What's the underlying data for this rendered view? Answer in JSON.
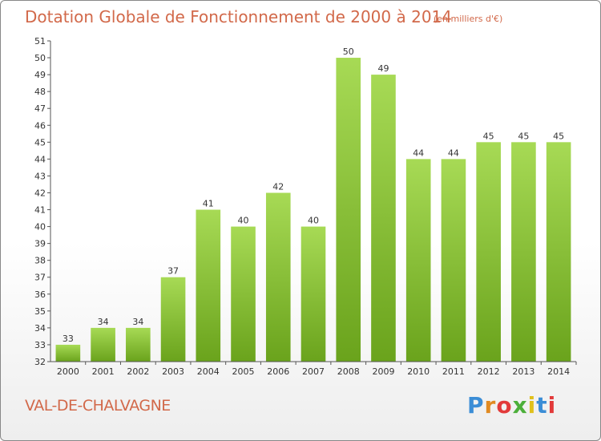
{
  "header": {
    "title": "Dotation Globale de Fonctionnement de 2000 à 2014",
    "subtitle": "(en milliers d'€)"
  },
  "footer": {
    "commune": "VAL-DE-CHALVAGNE",
    "logo": "Proxiti",
    "logo_colors": [
      "#3b8dd6",
      "#e08a22",
      "#e23a3a",
      "#4caf3a",
      "#e0c01c",
      "#3b8dd6",
      "#e23a3a"
    ]
  },
  "colors": {
    "bar_light": "#a7da55",
    "bar_dark": "#6aa31c",
    "title": "#d2694a",
    "grid_tick": "#555555"
  },
  "chart_data": {
    "type": "bar",
    "categories": [
      "2000",
      "2001",
      "2002",
      "2003",
      "2004",
      "2005",
      "2006",
      "2007",
      "2008",
      "2009",
      "2010",
      "2011",
      "2012",
      "2013",
      "2014"
    ],
    "values": [
      33,
      34,
      34,
      37,
      41,
      40,
      42,
      40,
      50,
      49,
      44,
      44,
      45,
      45,
      45
    ],
    "ylim": [
      32,
      51
    ],
    "yticks": [
      32,
      33,
      34,
      35,
      36,
      37,
      38,
      39,
      40,
      41,
      42,
      43,
      44,
      45,
      46,
      47,
      48,
      49,
      50,
      51
    ],
    "grid": false,
    "legend": "none"
  }
}
